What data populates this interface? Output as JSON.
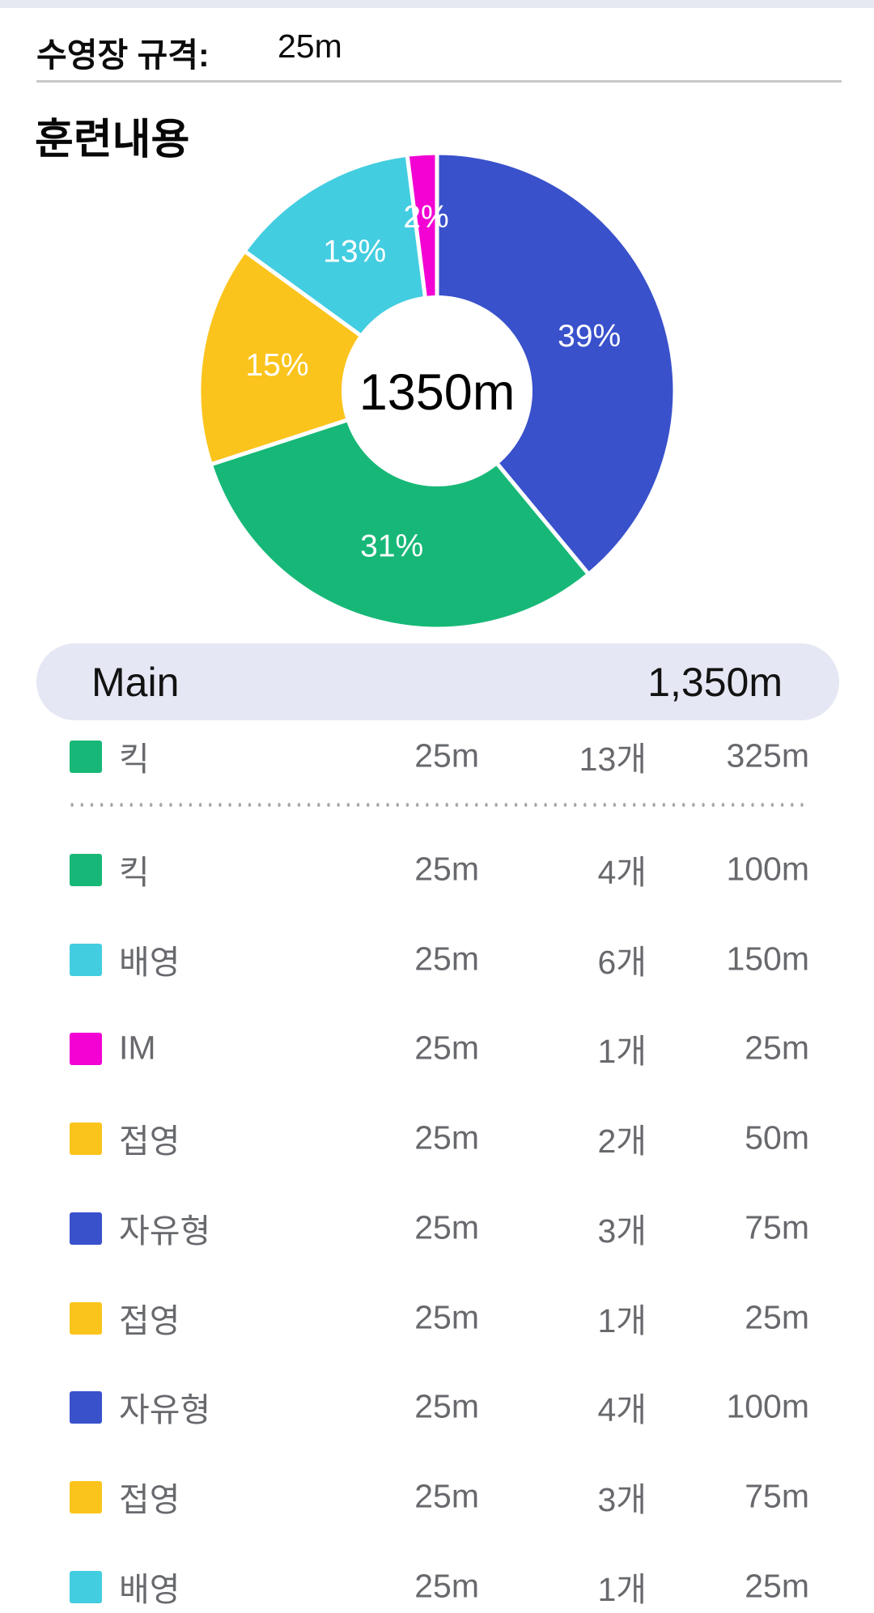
{
  "pool": {
    "label": "수영장 규격:",
    "value": "25m"
  },
  "section_title": "훈련내용",
  "chart_data": {
    "type": "pie",
    "style": "donut",
    "title": "훈련내용",
    "center_label": "1350m",
    "total_m": 1350,
    "unit": "m",
    "start_angle_deg": 0,
    "direction": "clockwise",
    "label_color": "#ffffff",
    "slices": [
      {
        "name": "자유형",
        "percent": 39,
        "label": "39%",
        "color": "#3951CB"
      },
      {
        "name": "킥",
        "percent": 31,
        "label": "31%",
        "color": "#17B877"
      },
      {
        "name": "접영",
        "percent": 15,
        "label": "15%",
        "color": "#FBC41C"
      },
      {
        "name": "배영",
        "percent": 13,
        "label": "13%",
        "color": "#43CDE0"
      },
      {
        "name": "IM",
        "percent": 2,
        "label": "2%",
        "color": "#F203D3"
      }
    ]
  },
  "summary": {
    "title": "Main",
    "total": "1,350m"
  },
  "rows": [
    {
      "stroke": "킥",
      "color": "#17B877",
      "lap": "25m",
      "count": "13개",
      "total": "325m",
      "divider_after": true
    },
    {
      "stroke": "킥",
      "color": "#17B877",
      "lap": "25m",
      "count": "4개",
      "total": "100m"
    },
    {
      "stroke": "배영",
      "color": "#43CDE0",
      "lap": "25m",
      "count": "6개",
      "total": "150m"
    },
    {
      "stroke": "IM",
      "color": "#F203D3",
      "lap": "25m",
      "count": "1개",
      "total": "25m"
    },
    {
      "stroke": "접영",
      "color": "#FBC41C",
      "lap": "25m",
      "count": "2개",
      "total": "50m"
    },
    {
      "stroke": "자유형",
      "color": "#3951CB",
      "lap": "25m",
      "count": "3개",
      "total": "75m"
    },
    {
      "stroke": "접영",
      "color": "#FBC41C",
      "lap": "25m",
      "count": "1개",
      "total": "25m"
    },
    {
      "stroke": "자유형",
      "color": "#3951CB",
      "lap": "25m",
      "count": "4개",
      "total": "100m"
    },
    {
      "stroke": "접영",
      "color": "#FBC41C",
      "lap": "25m",
      "count": "3개",
      "total": "75m"
    },
    {
      "stroke": "배영",
      "color": "#43CDE0",
      "lap": "25m",
      "count": "1개",
      "total": "25m"
    }
  ]
}
